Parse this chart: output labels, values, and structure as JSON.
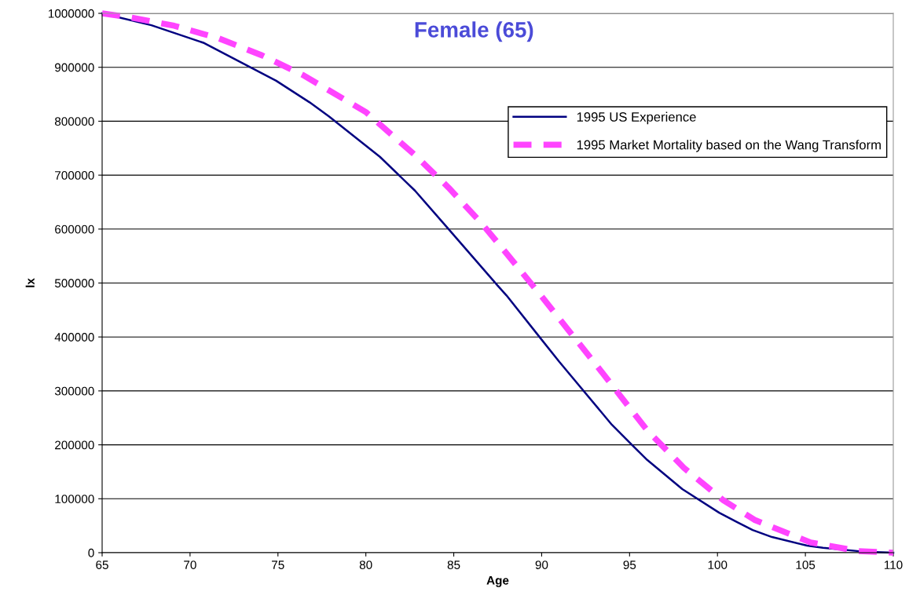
{
  "chart_data": {
    "type": "line",
    "title": "Female (65)",
    "xlabel": "Age",
    "ylabel": "lx",
    "xlim": [
      65,
      110
    ],
    "xticks": [
      65,
      70,
      75,
      80,
      85,
      90,
      95,
      100,
      105,
      110
    ],
    "ylim": [
      0,
      1000000
    ],
    "yticks": [
      0,
      100000,
      200000,
      300000,
      400000,
      500000,
      600000,
      700000,
      800000,
      900000,
      1000000
    ],
    "grid": "y",
    "legend": "right",
    "marker": "none",
    "series": [
      {
        "name": "1995 US Experience",
        "color": "#000080",
        "line_style": "solid",
        "x": [
          65,
          67.8,
          70.8,
          74.9,
          76.8,
          77.9,
          80.8,
          82.8,
          84.6,
          87.5,
          88.0,
          89.9,
          91.0,
          94.0,
          95.1,
          96.0,
          98.0,
          100.1,
          101.1,
          102.0,
          103.1,
          105.1,
          106.0,
          108.3,
          110
        ],
        "values": [
          1000000,
          978000,
          945000,
          875000,
          835000,
          809000,
          734000,
          671000,
          604000,
          495000,
          477000,
          399000,
          354000,
          237000,
          201000,
          172000,
          118000,
          74000,
          57000,
          42000,
          29000,
          13000,
          9000,
          2000,
          0
        ]
      },
      {
        "name": "1995 Market Mortality based on the Wang Transform",
        "color": "#ff44ff",
        "line_style": "dashed",
        "x": [
          65,
          66.5,
          69.1,
          71.6,
          74.1,
          76.4,
          80.0,
          82.8,
          84.7,
          86.6,
          88.0,
          90.0,
          93.2,
          96.0,
          98.1,
          100.3,
          102.1,
          105.3,
          108.0,
          110
        ],
        "values": [
          1000000,
          993000,
          977000,
          954000,
          922000,
          886000,
          817000,
          737000,
          677000,
          610000,
          555000,
          475000,
          344000,
          227000,
          157000,
          98000,
          61000,
          19000,
          3000,
          0
        ]
      }
    ]
  }
}
